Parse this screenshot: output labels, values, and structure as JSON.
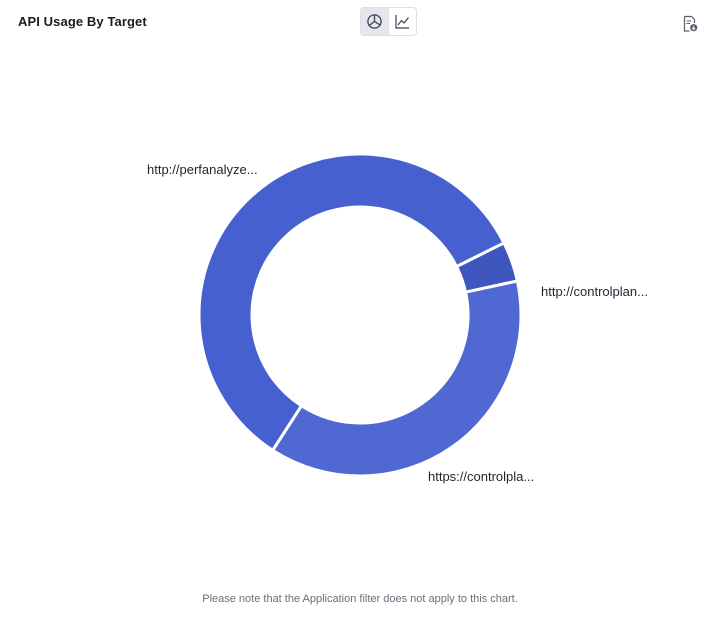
{
  "card": {
    "title": "API Usage By Target",
    "footnote": "Please note that the Application filter does not apply to this chart."
  },
  "toolbar": {
    "views": [
      {
        "icon": "pie-chart-icon",
        "active": true
      },
      {
        "icon": "line-chart-icon",
        "active": false
      }
    ],
    "export_icon": "export-report-icon"
  },
  "chart_data": {
    "type": "pie",
    "donut": true,
    "slices": [
      {
        "label": "http://perfanalyze...",
        "value": 58.5,
        "color": "#4660cf"
      },
      {
        "label": "http://controlplan...",
        "value": 4.0,
        "color": "#3f56be"
      },
      {
        "label": "https://controlpla...",
        "value": 37.5,
        "color": "#5068d2"
      }
    ]
  }
}
